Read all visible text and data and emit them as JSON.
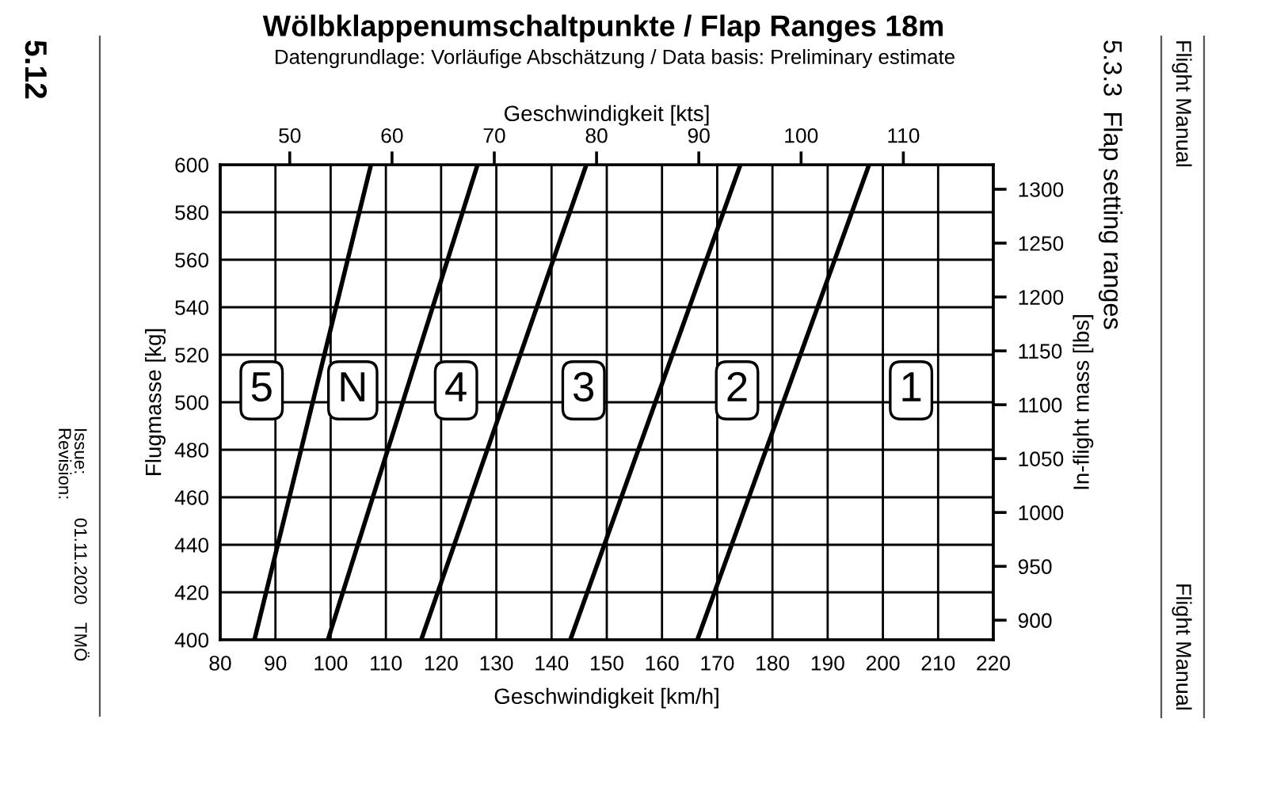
{
  "chart_data": {
    "type": "line",
    "title": "Wölbklappenumschaltpunkte / Flap Ranges 18m",
    "subtitle": "Datengrundlage: Vorläufige Abschätzung / Data basis: Preliminary estimate",
    "xlabel": "Geschwindigkeit [km/h]",
    "ylabel": "Flugmasse [kg]",
    "x2label": "Geschwindigkeit [kts]",
    "y2label": "In-flight mass [lbs]",
    "xlim": [
      80,
      220
    ],
    "xticks": [
      80,
      90,
      100,
      110,
      120,
      130,
      140,
      150,
      160,
      170,
      180,
      190,
      200,
      210,
      220
    ],
    "ylim": [
      400,
      600
    ],
    "yticks": [
      400,
      420,
      440,
      460,
      480,
      500,
      520,
      540,
      560,
      580,
      600
    ],
    "x2lim": [
      43.2,
      118.8
    ],
    "x2ticks": [
      50,
      60,
      70,
      80,
      90,
      100,
      110
    ],
    "y2lim": [
      881.8,
      1322.8
    ],
    "y2ticks": [
      900,
      950,
      1000,
      1050,
      1100,
      1150,
      1200,
      1250,
      1300
    ],
    "grid": true,
    "marker": "none",
    "line_style": "solid",
    "series": [
      {
        "color": "#000000",
        "x": [
          86.2,
          107.3
        ],
        "values": [
          400,
          600
        ]
      },
      {
        "color": "#000000",
        "x": [
          99.5,
          126.6
        ],
        "values": [
          400,
          600
        ]
      },
      {
        "color": "#000000",
        "x": [
          116.4,
          146.3
        ],
        "values": [
          400,
          600
        ]
      },
      {
        "color": "#000000",
        "x": [
          143.4,
          174.2
        ],
        "values": [
          400,
          600
        ]
      },
      {
        "color": "#000000",
        "x": [
          166.4,
          197.5
        ],
        "values": [
          400,
          600
        ]
      }
    ],
    "annotations": [
      {
        "text": "5",
        "x": 87.5,
        "y": 505
      },
      {
        "text": "N",
        "x": 104,
        "y": 505
      },
      {
        "text": "4",
        "x": 122.7,
        "y": 505
      },
      {
        "text": "3",
        "x": 145.8,
        "y": 505
      },
      {
        "text": "2",
        "x": 173.6,
        "y": 505
      },
      {
        "text": "1",
        "x": 205.1,
        "y": 505
      },
      "5.12",
      "Issue:",
      "Revision:",
      "01.11.2020",
      "TMÖ",
      "5.3.3  Flap setting ranges",
      "Flight Manual",
      "Flight Manual"
    ]
  }
}
